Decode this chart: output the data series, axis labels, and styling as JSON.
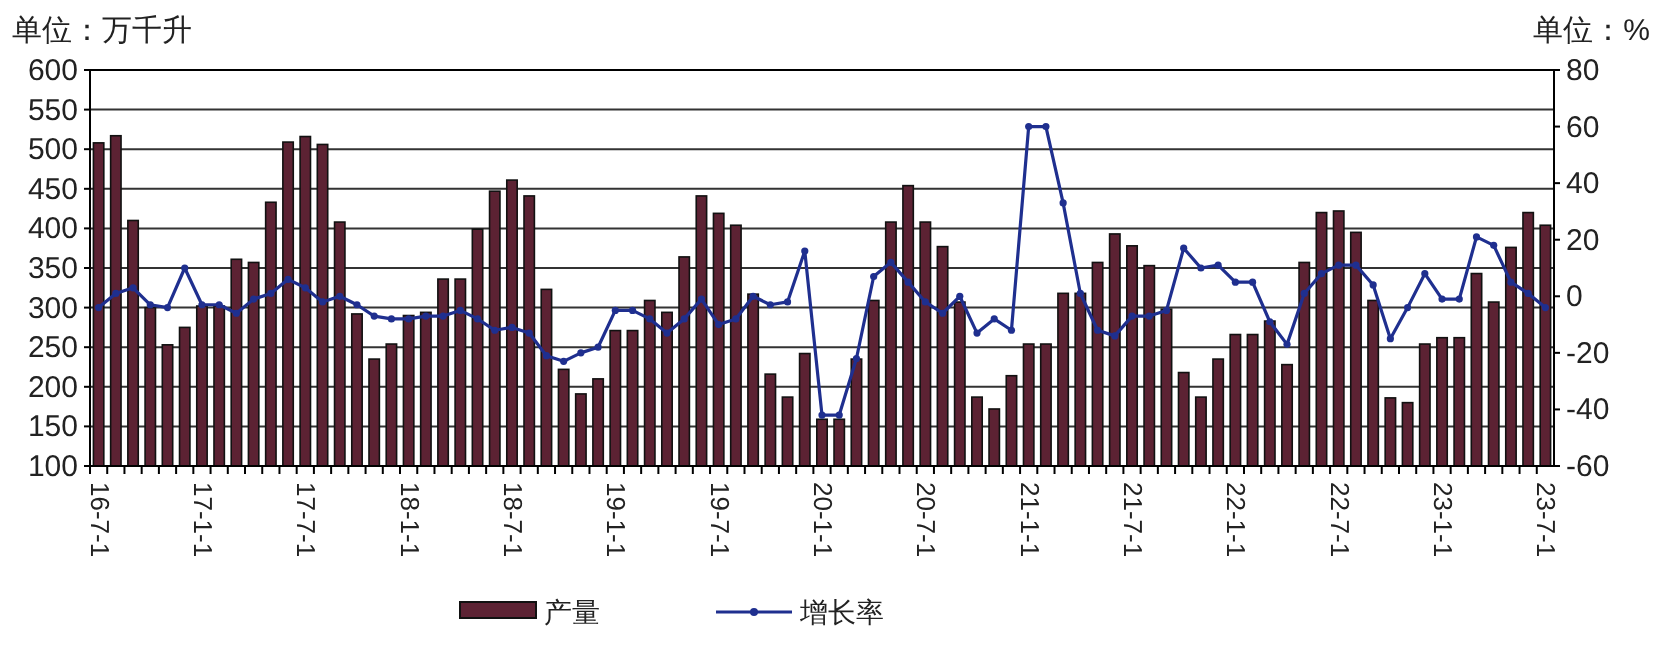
{
  "chart_data": {
    "type": "bar",
    "ylabel": "单位：万千升",
    "y2label": "单位：%",
    "categories": [
      "16-7-1",
      null,
      null,
      null,
      null,
      null,
      "17-1-1",
      null,
      null,
      null,
      null,
      null,
      "17-7-1",
      null,
      null,
      null,
      null,
      null,
      "18-1-1",
      null,
      null,
      null,
      null,
      null,
      "18-7-1",
      null,
      null,
      null,
      null,
      null,
      "19-1-1",
      null,
      null,
      null,
      null,
      null,
      "19-7-1",
      null,
      null,
      null,
      null,
      null,
      "20-1-1",
      null,
      null,
      null,
      null,
      null,
      "20-7-1",
      null,
      null,
      null,
      null,
      null,
      "21-1-1",
      null,
      null,
      null,
      null,
      null,
      "21-7-1",
      null,
      null,
      null,
      null,
      null,
      "22-1-1",
      null,
      null,
      null,
      null,
      null,
      "22-7-1",
      null,
      null,
      null,
      null,
      null,
      "23-1-1",
      null,
      null,
      null,
      null,
      null,
      "23-7-1"
    ],
    "series": [
      {
        "name": "产量",
        "color": "#5c2233",
        "values": [
          508,
          517,
          410,
          300,
          253,
          275,
          302,
          302,
          361,
          357,
          433,
          509,
          516,
          506,
          408,
          292,
          235,
          254,
          290,
          294,
          336,
          336,
          399,
          447,
          461,
          441,
          323,
          222,
          191,
          210,
          271,
          271,
          309,
          294,
          364,
          441,
          419,
          404,
          317,
          216,
          187,
          242,
          159,
          159,
          235,
          309,
          408,
          454,
          408,
          377,
          307,
          187,
          172,
          214,
          254,
          254,
          318,
          318,
          357,
          393,
          378,
          353,
          298,
          218,
          187,
          235,
          266,
          266,
          283,
          228,
          357,
          420,
          422,
          395,
          309,
          186,
          180,
          254,
          262,
          262,
          343,
          307,
          376,
          420,
          404
        ]
      },
      {
        "name": "增长率",
        "type": "line",
        "axis": "y2",
        "color": "#1f2f8f",
        "marker": "circle",
        "values": [
          -4,
          1,
          3,
          -3,
          -4,
          10,
          -3,
          -3,
          -6,
          -1,
          1,
          6,
          3,
          -2,
          0,
          -3,
          -7,
          -8,
          -8,
          -7,
          -7,
          -5,
          -8,
          -12,
          -11,
          -13,
          -21,
          -23,
          -20,
          -18,
          -5,
          -5,
          -8,
          -13,
          -8,
          -1,
          -10,
          -8,
          0,
          -3,
          -2,
          16,
          -42,
          -42,
          -22,
          7,
          12,
          5,
          -2,
          -6,
          0,
          -13,
          -8,
          -12,
          60,
          60,
          33,
          1,
          -12,
          -14,
          -7,
          -7,
          -5,
          17,
          10,
          11,
          5,
          5,
          -9,
          -17,
          1,
          8,
          11,
          11,
          4,
          -15,
          -4,
          8,
          -1,
          -1,
          21,
          18,
          5,
          1,
          -4
        ]
      }
    ],
    "ylim": [
      100,
      600
    ],
    "yticks": [
      100,
      150,
      200,
      250,
      300,
      350,
      400,
      450,
      500,
      550,
      600
    ],
    "y2lim": [
      -60,
      80
    ],
    "y2ticks": [
      -60,
      -40,
      -20,
      0,
      20,
      40,
      60,
      80
    ],
    "grid": "y",
    "legend": "bottom"
  }
}
